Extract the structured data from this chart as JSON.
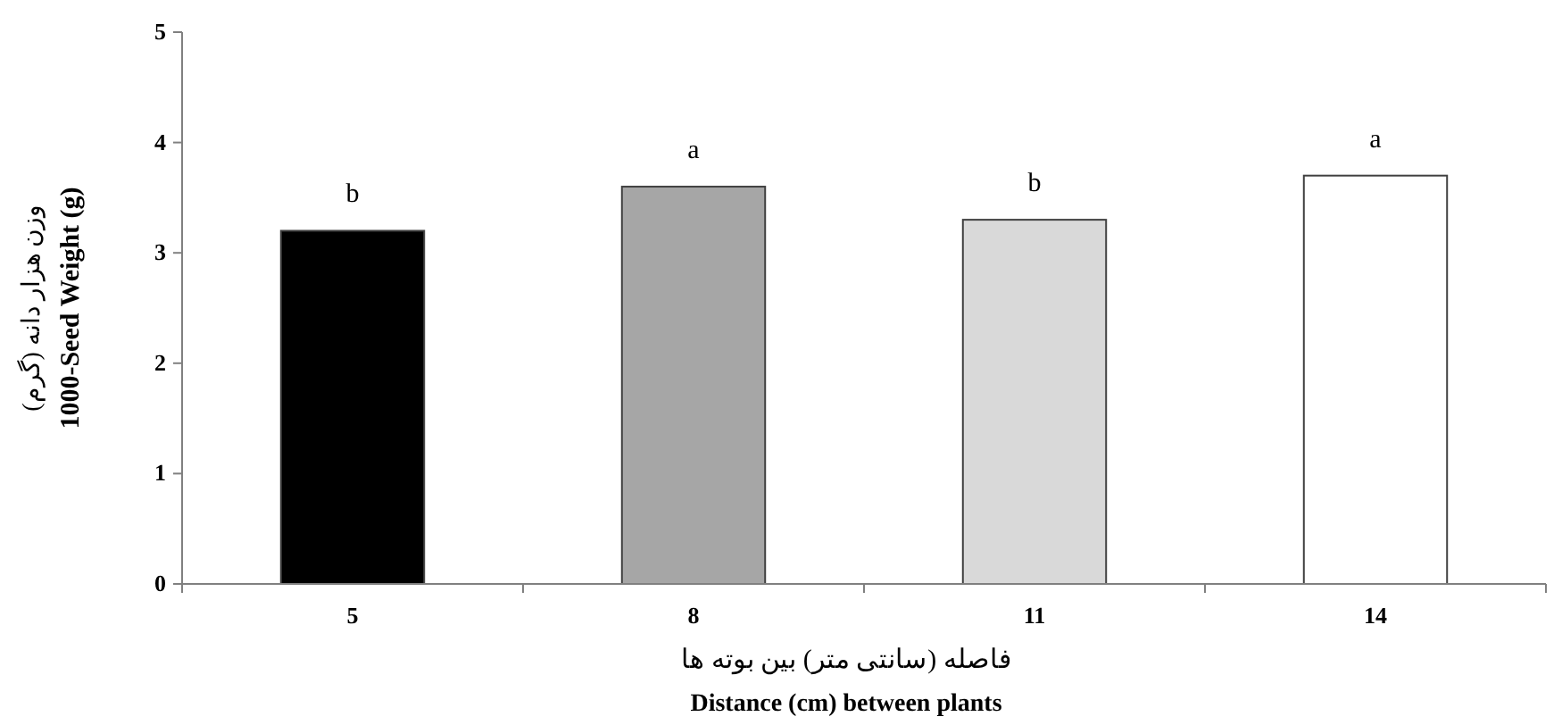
{
  "chart_data": {
    "type": "bar",
    "categories": [
      "5",
      "8",
      "11",
      "14"
    ],
    "values": [
      3.2,
      3.6,
      3.3,
      3.7
    ],
    "colors": [
      "#000000",
      "#a6a6a6",
      "#d9d9d9",
      "#ffffff"
    ],
    "xlabel": "فاصله (سانتی متر) بین بوته ها\nDistance (cm) between plants",
    "ylabel": "وزن هزار دانه (گرم)\n1000-Seed Weight (g)",
    "ylim": [
      0,
      5
    ],
    "yticks": [
      0,
      1,
      2,
      3,
      4,
      5
    ],
    "annotations": [
      {
        "text": "b",
        "x": "5",
        "y": 3.2
      },
      {
        "text": "a",
        "x": "8",
        "y": 3.6
      },
      {
        "text": "b",
        "x": "11",
        "y": 3.3
      },
      {
        "text": "a",
        "x": "14",
        "y": 3.7
      }
    ]
  }
}
